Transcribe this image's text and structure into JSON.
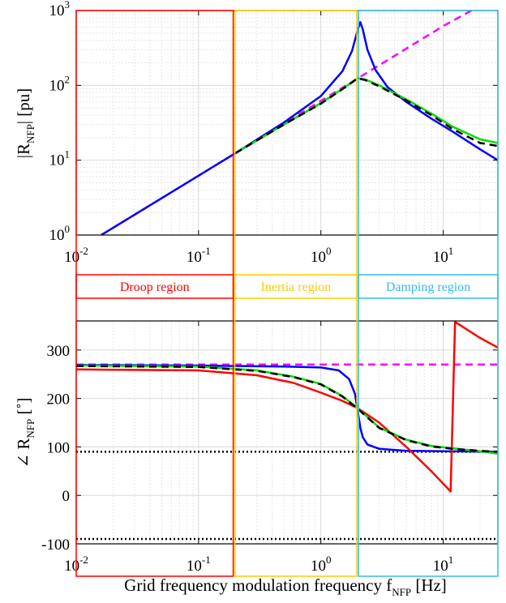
{
  "chart_data": [
    {
      "id": "magnitude",
      "type": "line",
      "scale": "log-log",
      "ylabel": "|R_NFP| [pu]",
      "ylabel_main": "|R",
      "ylabel_sub": "NFP",
      "ylabel_tail": "| [pu]",
      "xlim": [
        0.01,
        28
      ],
      "ylim": [
        1,
        1000
      ],
      "grid": "on (major and minor)",
      "xticks": [
        0.01,
        0.1,
        1,
        10
      ],
      "xtick_labels": [
        {
          "base": "10",
          "exp": "-2"
        },
        {
          "base": "10",
          "exp": "-1"
        },
        {
          "base": "10",
          "exp": "0"
        },
        {
          "base": "10",
          "exp": "1"
        }
      ],
      "yticks": [
        1,
        10,
        100,
        1000
      ],
      "ytick_labels": [
        {
          "base": "10",
          "exp": "0"
        },
        {
          "base": "10",
          "exp": "1"
        },
        {
          "base": "10",
          "exp": "2"
        },
        {
          "base": "10",
          "exp": "3"
        }
      ],
      "series": [
        {
          "color": "#ff00ff",
          "style": "dashed",
          "width": 2.5,
          "x": [
            0.016,
            0.1,
            0.2,
            0.5,
            1,
            2,
            5,
            10,
            17
          ],
          "y": [
            1.0,
            6.2,
            12.4,
            31,
            62,
            124,
            310,
            620,
            1000
          ]
        },
        {
          "color": "#0000ff",
          "style": "solid",
          "width": 2.5,
          "x": [
            0.016,
            0.1,
            0.2,
            0.5,
            1,
            1.5,
            1.8,
            2.0,
            2.1,
            2.2,
            2.4,
            2.8,
            3.5,
            5,
            8,
            12,
            20,
            28
          ],
          "y": [
            1.0,
            6.2,
            12.4,
            32,
            72,
            155,
            290,
            550,
            700,
            560,
            300,
            160,
            95,
            60,
            36,
            24,
            14,
            10
          ]
        },
        {
          "color": "#00dd00",
          "style": "solid",
          "width": 2.5,
          "x": [
            0.2,
            0.5,
            1,
            1.5,
            2.0,
            2.3,
            3,
            5,
            8,
            12,
            20,
            28
          ],
          "y": [
            12.4,
            30,
            58,
            90,
            125,
            120,
            100,
            65,
            42,
            28,
            19,
            17
          ]
        },
        {
          "color": "#000000",
          "style": "dashed",
          "width": 2.5,
          "x": [
            0.2,
            0.5,
            1,
            1.5,
            2.0,
            2.3,
            3,
            5,
            8,
            12,
            20,
            28
          ],
          "y": [
            12.4,
            30,
            57,
            89,
            124,
            118,
            97,
            63,
            40,
            26,
            17,
            15.5
          ]
        }
      ]
    },
    {
      "id": "phase",
      "type": "line",
      "scale": "semilog-x",
      "ylabel": "∠ R_NFP [°]",
      "ylabel_main": "∠ R",
      "ylabel_sub": "NFP",
      "ylabel_tail": " [˚]",
      "xlabel": "Grid frequency modulation frequency f_NFP [Hz]",
      "xlabel_main": "Grid frequency modulation frequency f",
      "xlabel_sub": "NFP",
      "xlabel_tail": " [Hz]",
      "xlim": [
        0.01,
        28
      ],
      "ylim": [
        -100,
        360
      ],
      "grid": "on",
      "xticks": [
        0.01,
        0.1,
        1,
        10
      ],
      "xtick_labels": [
        {
          "base": "10",
          "exp": "-2"
        },
        {
          "base": "10",
          "exp": "-1"
        },
        {
          "base": "10",
          "exp": "0"
        },
        {
          "base": "10",
          "exp": "1"
        }
      ],
      "yticks": [
        -100,
        0,
        100,
        200,
        300
      ],
      "ytick_labels": [
        "-100",
        "0",
        "100",
        "200",
        "300"
      ],
      "series": [
        {
          "color": "#ff00ff",
          "style": "dashed",
          "width": 2.5,
          "x": [
            0.01,
            28
          ],
          "y": [
            270,
            270
          ]
        },
        {
          "color": "#000000",
          "style": "dotted",
          "width": 2.5,
          "x": [
            0.01,
            28
          ],
          "y": [
            90,
            90
          ]
        },
        {
          "color": "#000000",
          "style": "dotted",
          "width": 2.5,
          "x": [
            0.01,
            28
          ],
          "y": [
            -90,
            -90
          ]
        },
        {
          "color": "#0000ff",
          "style": "solid",
          "width": 2.5,
          "x": [
            0.01,
            0.1,
            0.5,
            1,
            1.4,
            1.7,
            1.9,
            2.0,
            2.1,
            2.2,
            2.4,
            3,
            5,
            10,
            28
          ],
          "y": [
            269,
            268,
            266,
            264,
            258,
            240,
            210,
            175,
            140,
            120,
            105,
            96,
            92,
            91,
            90
          ]
        },
        {
          "color": "#ff0000",
          "style": "solid",
          "width": 2.5,
          "x": [
            0.01,
            0.1,
            0.3,
            0.6,
            1,
            1.5,
            2,
            3,
            5,
            8,
            11.5,
            12.5,
            20,
            28
          ],
          "y": [
            260,
            258,
            248,
            232,
            212,
            195,
            180,
            150,
            100,
            50,
            8,
            358,
            325,
            305
          ]
        },
        {
          "color": "#00dd00",
          "style": "solid",
          "width": 2.5,
          "x": [
            0.01,
            0.1,
            0.3,
            0.6,
            1,
            1.5,
            2,
            2.5,
            3,
            5,
            8,
            12,
            20,
            28
          ],
          "y": [
            268,
            266,
            258,
            245,
            230,
            205,
            180,
            158,
            140,
            115,
            102,
            97,
            91,
            86
          ]
        },
        {
          "color": "#000000",
          "style": "dashed",
          "width": 2.5,
          "x": [
            0.01,
            0.1,
            0.3,
            0.6,
            1,
            1.5,
            2,
            2.5,
            3,
            5,
            8,
            12,
            20,
            28
          ],
          "y": [
            267,
            265,
            257,
            244,
            229,
            204,
            179,
            157,
            139,
            114,
            101,
            96,
            92,
            90
          ]
        }
      ]
    }
  ],
  "regions": [
    {
      "label": "Droop region",
      "color": "#ff0000",
      "x_start": 0.01,
      "x_end": 0.195
    },
    {
      "label": "Inertia region",
      "color": "#ffcc00",
      "x_start": 0.195,
      "x_end": 2.0
    },
    {
      "label": "Damping region",
      "color": "#33bbee",
      "x_start": 2.0,
      "x_end": 28
    }
  ]
}
